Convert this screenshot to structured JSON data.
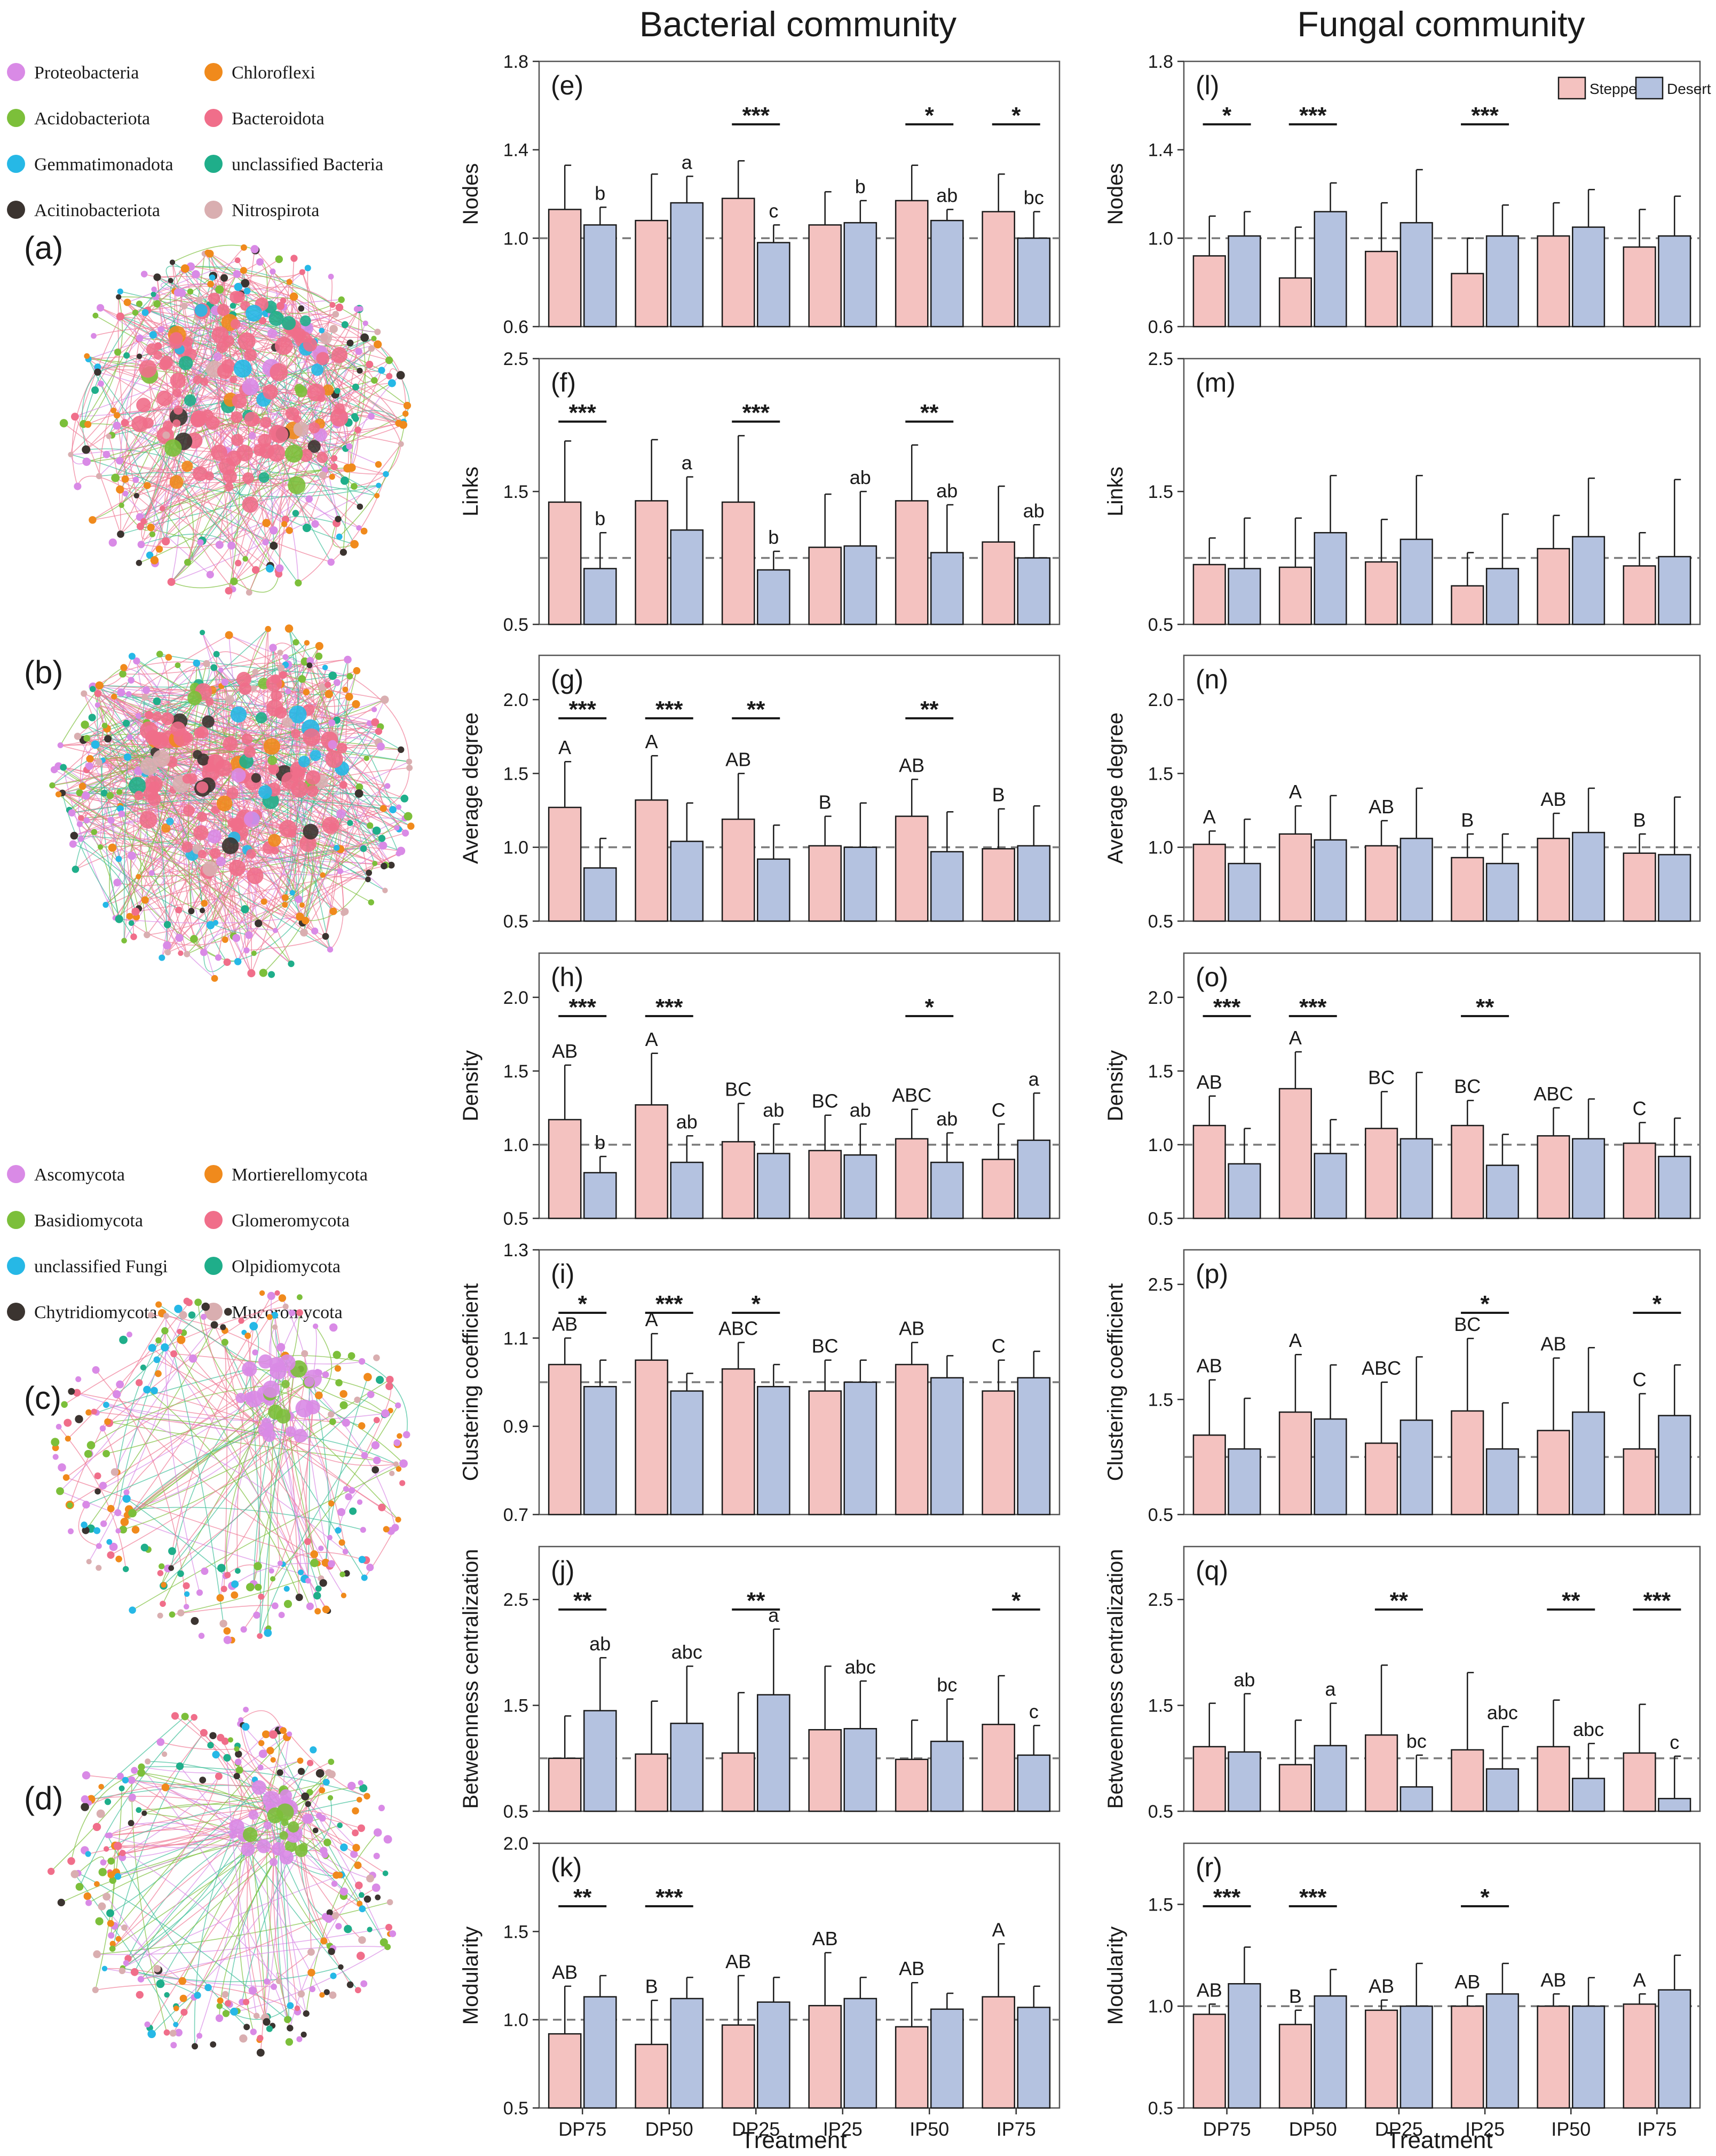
{
  "figure": {
    "titles": {
      "bacterial": "Bacterial community",
      "fungal": "Fungal community"
    },
    "treatment_label": "Treatment",
    "categories": [
      "DP75",
      "DP50",
      "DP25",
      "IP25",
      "IP50",
      "IP75"
    ],
    "legend": {
      "steppe": "Steppe",
      "desert": "Desert"
    },
    "colors": {
      "steppe": "#f4c2c0",
      "desert": "#b4c2e0",
      "edge": "#1a1a1a",
      "reference": "#7a7a7a"
    }
  },
  "network_panels": [
    {
      "label": "(a)",
      "kind": "bacteria"
    },
    {
      "label": "(b)",
      "kind": "bacteria"
    },
    {
      "label": "(c)",
      "kind": "fungi"
    },
    {
      "label": "(d)",
      "kind": "fungi"
    }
  ],
  "bacteria_legend": [
    {
      "name": "Proteobacteria",
      "color": "#d98ae6"
    },
    {
      "name": "Chloroflexi",
      "color": "#f08a1c"
    },
    {
      "name": "Acidobacteriota",
      "color": "#7cbf3a"
    },
    {
      "name": "Bacteroidota",
      "color": "#f06e8a"
    },
    {
      "name": "Gemmatimonadota",
      "color": "#26b8e6"
    },
    {
      "name": "unclassified Bacteria",
      "color": "#1fae8a"
    },
    {
      "name": "Acitinobacteriota",
      "color": "#3b3430"
    },
    {
      "name": "Nitrospirota",
      "color": "#d9aeb0"
    }
  ],
  "fungi_legend": [
    {
      "name": "Ascomycota",
      "color": "#d98ae6"
    },
    {
      "name": "Mortierellomycota",
      "color": "#f08a1c"
    },
    {
      "name": "Basidiomycota",
      "color": "#7cbf3a"
    },
    {
      "name": "Glomeromycota",
      "color": "#f06e8a"
    },
    {
      "name": "unclassified Fungi",
      "color": "#26b8e6"
    },
    {
      "name": "Olpidiomycota",
      "color": "#1fae8a"
    },
    {
      "name": "Chytridiomycota",
      "color": "#3b3430"
    },
    {
      "name": "Mucoromycota",
      "color": "#d9aeb0"
    }
  ],
  "chart_data": [
    {
      "panel": "(e)",
      "type": "bar",
      "community": "Bacterial",
      "ylabel": "Nodes",
      "ylim": [
        0.6,
        1.8
      ],
      "yticks": [
        "0.6",
        "1.0",
        "1.4",
        "1.8"
      ],
      "reference": 1.0,
      "steppe": [
        1.13,
        1.08,
        1.18,
        1.06,
        1.17,
        1.12
      ],
      "steppe_err": [
        0.2,
        0.21,
        0.17,
        0.15,
        0.16,
        0.17
      ],
      "desert": [
        1.06,
        1.16,
        0.98,
        1.07,
        1.08,
        1.0
      ],
      "desert_err": [
        0.08,
        0.12,
        0.08,
        0.1,
        0.05,
        0.12
      ],
      "sig": [
        "",
        "",
        "***",
        "",
        "*",
        "*"
      ],
      "steppe_letters": [
        "",
        "",
        "",
        "",
        "",
        ""
      ],
      "desert_letters": [
        "b",
        "a",
        "c",
        "b",
        "ab",
        "bc"
      ]
    },
    {
      "panel": "(f)",
      "type": "bar",
      "community": "Bacterial",
      "ylabel": "Links",
      "ylim": [
        0.5,
        2.5
      ],
      "yticks": [
        "0.5",
        "1.5",
        "2.5"
      ],
      "reference": 1.0,
      "steppe": [
        1.42,
        1.43,
        1.42,
        1.08,
        1.43,
        1.12
      ],
      "steppe_err": [
        0.46,
        0.46,
        0.5,
        0.4,
        0.42,
        0.42
      ],
      "desert": [
        0.92,
        1.21,
        0.91,
        1.09,
        1.04,
        1.0
      ],
      "desert_err": [
        0.27,
        0.4,
        0.14,
        0.41,
        0.36,
        0.25
      ],
      "sig": [
        "***",
        "",
        "***",
        "",
        "**",
        ""
      ],
      "steppe_letters": [
        "",
        "",
        "",
        "",
        "",
        ""
      ],
      "desert_letters": [
        "b",
        "a",
        "b",
        "ab",
        "ab",
        "ab"
      ]
    },
    {
      "panel": "(g)",
      "type": "bar",
      "community": "Bacterial",
      "ylabel": "Average degree",
      "ylim": [
        0.5,
        2.3
      ],
      "yticks": [
        "0.5",
        "1.0",
        "1.5",
        "2.0"
      ],
      "reference": 1.0,
      "steppe": [
        1.27,
        1.32,
        1.19,
        1.01,
        1.21,
        0.99
      ],
      "steppe_err": [
        0.31,
        0.3,
        0.31,
        0.2,
        0.25,
        0.27
      ],
      "desert": [
        0.86,
        1.04,
        0.92,
        1.0,
        0.97,
        1.01
      ],
      "desert_err": [
        0.2,
        0.26,
        0.23,
        0.3,
        0.27,
        0.27
      ],
      "sig": [
        "***",
        "***",
        "**",
        "",
        "**",
        ""
      ],
      "steppe_letters": [
        "A",
        "A",
        "AB",
        "B",
        "AB",
        "B"
      ],
      "desert_letters": [
        "",
        "",
        "",
        "",
        "",
        ""
      ]
    },
    {
      "panel": "(h)",
      "type": "bar",
      "community": "Bacterial",
      "ylabel": "Density",
      "ylim": [
        0.5,
        2.3
      ],
      "yticks": [
        "0.5",
        "1.0",
        "1.5",
        "2.0"
      ],
      "reference": 1.0,
      "steppe": [
        1.17,
        1.27,
        1.02,
        0.96,
        1.04,
        0.9
      ],
      "steppe_err": [
        0.37,
        0.35,
        0.26,
        0.24,
        0.2,
        0.24
      ],
      "desert": [
        0.81,
        0.88,
        0.94,
        0.93,
        0.88,
        1.03
      ],
      "desert_err": [
        0.11,
        0.18,
        0.2,
        0.21,
        0.2,
        0.32
      ],
      "sig": [
        "***",
        "***",
        "",
        "",
        "*",
        ""
      ],
      "steppe_letters": [
        "AB",
        "A",
        "BC",
        "BC",
        "ABC",
        "C"
      ],
      "desert_letters": [
        "b",
        "ab",
        "ab",
        "ab",
        "ab",
        "a"
      ]
    },
    {
      "panel": "(i)",
      "type": "bar",
      "community": "Bacterial",
      "ylabel": "Clustering coefficient",
      "ylim": [
        0.7,
        1.3
      ],
      "yticks": [
        "0.7",
        "0.9",
        "1.1",
        "1.3"
      ],
      "reference": 1.0,
      "steppe": [
        1.04,
        1.05,
        1.03,
        0.98,
        1.04,
        0.98
      ],
      "steppe_err": [
        0.06,
        0.06,
        0.06,
        0.07,
        0.05,
        0.07
      ],
      "desert": [
        0.99,
        0.98,
        0.99,
        1.0,
        1.01,
        1.01
      ],
      "desert_err": [
        0.06,
        0.04,
        0.05,
        0.05,
        0.05,
        0.06
      ],
      "sig": [
        "*",
        "***",
        "*",
        "",
        "",
        ""
      ],
      "steppe_letters": [
        "AB",
        "A",
        "ABC",
        "BC",
        "AB",
        "C"
      ],
      "desert_letters": [
        "",
        "",
        "",
        "",
        "",
        ""
      ]
    },
    {
      "panel": "(j)",
      "type": "bar",
      "community": "Bacterial",
      "ylabel": "Betweenness centralization",
      "ylim": [
        0.5,
        3.0
      ],
      "yticks": [
        "0.5",
        "1.5",
        "2.5"
      ],
      "reference": 1.0,
      "steppe": [
        1.0,
        1.04,
        1.05,
        1.27,
        0.99,
        1.32
      ],
      "steppe_err": [
        0.4,
        0.5,
        0.57,
        0.6,
        0.37,
        0.46
      ],
      "desert": [
        1.45,
        1.33,
        1.6,
        1.28,
        1.16,
        1.03
      ],
      "desert_err": [
        0.5,
        0.54,
        0.62,
        0.45,
        0.4,
        0.28
      ],
      "sig": [
        "**",
        "",
        "**",
        "",
        "",
        "*"
      ],
      "steppe_letters": [
        "",
        "",
        "",
        "",
        "",
        ""
      ],
      "desert_letters": [
        "ab",
        "abc",
        "a",
        "abc",
        "bc",
        "c"
      ]
    },
    {
      "panel": "(k)",
      "type": "bar",
      "community": "Bacterial",
      "ylabel": "Modularity",
      "ylim": [
        0.5,
        2.0
      ],
      "yticks": [
        "0.5",
        "1.0",
        "1.5",
        "2.0"
      ],
      "reference": 1.0,
      "steppe": [
        0.92,
        0.86,
        0.97,
        1.08,
        0.96,
        1.13
      ],
      "steppe_err": [
        0.27,
        0.25,
        0.28,
        0.3,
        0.25,
        0.3
      ],
      "desert": [
        1.13,
        1.12,
        1.1,
        1.12,
        1.06,
        1.07
      ],
      "desert_err": [
        0.12,
        0.12,
        0.14,
        0.12,
        0.09,
        0.12
      ],
      "sig": [
        "**",
        "***",
        "",
        "",
        "",
        ""
      ],
      "steppe_letters": [
        "AB",
        "B",
        "AB",
        "AB",
        "AB",
        "A"
      ],
      "desert_letters": [
        "",
        "",
        "",
        "",
        "",
        ""
      ]
    },
    {
      "panel": "(l)",
      "type": "bar",
      "community": "Fungal",
      "ylabel": "Nodes",
      "ylim": [
        0.6,
        1.8
      ],
      "yticks": [
        "0.6",
        "1.0",
        "1.4",
        "1.8"
      ],
      "reference": 1.0,
      "steppe": [
        0.92,
        0.82,
        0.94,
        0.84,
        1.01,
        0.96
      ],
      "steppe_err": [
        0.18,
        0.23,
        0.22,
        0.16,
        0.15,
        0.17
      ],
      "desert": [
        1.01,
        1.12,
        1.07,
        1.01,
        1.05,
        1.01
      ],
      "desert_err": [
        0.11,
        0.13,
        0.24,
        0.14,
        0.17,
        0.18
      ],
      "sig": [
        "*",
        "***",
        "",
        "***",
        "",
        ""
      ],
      "steppe_letters": [
        "",
        "",
        "",
        "",
        "",
        ""
      ],
      "desert_letters": [
        "",
        "",
        "",
        "",
        "",
        ""
      ],
      "legend": true
    },
    {
      "panel": "(m)",
      "type": "bar",
      "community": "Fungal",
      "ylabel": "Links",
      "ylim": [
        0.5,
        2.5
      ],
      "yticks": [
        "0.5",
        "1.5",
        "2.5"
      ],
      "reference": 1.0,
      "steppe": [
        0.95,
        0.93,
        0.97,
        0.79,
        1.07,
        0.94
      ],
      "steppe_err": [
        0.2,
        0.37,
        0.32,
        0.25,
        0.25,
        0.25
      ],
      "desert": [
        0.92,
        1.19,
        1.14,
        0.92,
        1.16,
        1.01
      ],
      "desert_err": [
        0.38,
        0.43,
        0.48,
        0.41,
        0.44,
        0.58
      ],
      "sig": [
        "",
        "",
        "",
        "",
        "",
        ""
      ],
      "steppe_letters": [
        "",
        "",
        "",
        "",
        "",
        ""
      ],
      "desert_letters": [
        "",
        "",
        "",
        "",
        "",
        ""
      ]
    },
    {
      "panel": "(n)",
      "type": "bar",
      "community": "Fungal",
      "ylabel": "Average degree",
      "ylim": [
        0.5,
        2.3
      ],
      "yticks": [
        "0.5",
        "1.0",
        "1.5",
        "2.0"
      ],
      "reference": 1.0,
      "steppe": [
        1.02,
        1.09,
        1.01,
        0.93,
        1.06,
        0.96
      ],
      "steppe_err": [
        0.09,
        0.19,
        0.17,
        0.16,
        0.17,
        0.13
      ],
      "desert": [
        0.89,
        1.05,
        1.06,
        0.89,
        1.1,
        0.95
      ],
      "desert_err": [
        0.3,
        0.3,
        0.34,
        0.2,
        0.3,
        0.39
      ],
      "sig": [
        "",
        "",
        "",
        "",
        "",
        ""
      ],
      "steppe_letters": [
        "A",
        "A",
        "AB",
        "B",
        "AB",
        "B"
      ],
      "desert_letters": [
        "",
        "",
        "",
        "",
        "",
        ""
      ]
    },
    {
      "panel": "(o)",
      "type": "bar",
      "community": "Fungal",
      "ylabel": "Density",
      "ylim": [
        0.5,
        2.3
      ],
      "yticks": [
        "0.5",
        "1.0",
        "1.5",
        "2.0"
      ],
      "reference": 1.0,
      "steppe": [
        1.13,
        1.38,
        1.11,
        1.13,
        1.06,
        1.01
      ],
      "steppe_err": [
        0.2,
        0.25,
        0.25,
        0.17,
        0.19,
        0.14
      ],
      "desert": [
        0.87,
        0.94,
        1.04,
        0.86,
        1.04,
        0.92
      ],
      "desert_err": [
        0.24,
        0.23,
        0.45,
        0.21,
        0.27,
        0.26
      ],
      "sig": [
        "***",
        "***",
        "",
        "**",
        "",
        ""
      ],
      "steppe_letters": [
        "AB",
        "A",
        "BC",
        "BC",
        "ABC",
        "C"
      ],
      "desert_letters": [
        "",
        "",
        "",
        "",
        "",
        ""
      ]
    },
    {
      "panel": "(p)",
      "type": "bar",
      "community": "Fungal",
      "ylabel": "Clustering coefficient",
      "ylim": [
        0.5,
        2.8
      ],
      "yticks": [
        "0.5",
        "1.5",
        "2.5"
      ],
      "reference": 1.0,
      "steppe": [
        1.19,
        1.39,
        1.12,
        1.4,
        1.23,
        1.07
      ],
      "steppe_err": [
        0.48,
        0.5,
        0.53,
        0.63,
        0.63,
        0.48
      ],
      "desert": [
        1.07,
        1.33,
        1.32,
        1.07,
        1.39,
        1.36
      ],
      "desert_err": [
        0.44,
        0.47,
        0.55,
        0.4,
        0.56,
        0.44
      ],
      "sig": [
        "",
        "",
        "",
        "*",
        "",
        "*"
      ],
      "steppe_letters": [
        "AB",
        "A",
        "ABC",
        "BC",
        "AB",
        "C"
      ],
      "desert_letters": [
        "",
        "",
        "",
        "",
        "",
        ""
      ]
    },
    {
      "panel": "(q)",
      "type": "bar",
      "community": "Fungal",
      "ylabel": "Betweenness centralization",
      "ylim": [
        0.5,
        3.0
      ],
      "yticks": [
        "0.5",
        "1.5",
        "2.5"
      ],
      "reference": 1.0,
      "steppe": [
        1.11,
        0.94,
        1.22,
        1.08,
        1.11,
        1.05
      ],
      "steppe_err": [
        0.41,
        0.42,
        0.66,
        0.73,
        0.44,
        0.46
      ],
      "desert": [
        1.06,
        1.12,
        0.73,
        0.9,
        0.81,
        0.62
      ],
      "desert_err": [
        0.55,
        0.4,
        0.3,
        0.4,
        0.33,
        0.4
      ],
      "sig": [
        "",
        "",
        "**",
        "",
        "**",
        "***"
      ],
      "steppe_letters": [
        "",
        "",
        "",
        "",
        "",
        ""
      ],
      "desert_letters": [
        "ab",
        "a",
        "bc",
        "abc",
        "abc",
        "c"
      ]
    },
    {
      "panel": "(r)",
      "type": "bar",
      "community": "Fungal",
      "ylabel": "Modularity",
      "ylim": [
        0.5,
        1.8
      ],
      "yticks": [
        "0.5",
        "1.0",
        "1.5"
      ],
      "reference": 1.0,
      "steppe": [
        0.96,
        0.91,
        0.98,
        1.0,
        1.0,
        1.01
      ],
      "steppe_err": [
        0.05,
        0.07,
        0.05,
        0.05,
        0.06,
        0.05
      ],
      "desert": [
        1.11,
        1.05,
        1.0,
        1.06,
        1.0,
        1.08
      ],
      "desert_err": [
        0.18,
        0.13,
        0.21,
        0.15,
        0.14,
        0.17
      ],
      "sig": [
        "***",
        "***",
        "",
        "*",
        "",
        ""
      ],
      "steppe_letters": [
        "AB",
        "B",
        "AB",
        "AB",
        "AB",
        "A"
      ],
      "desert_letters": [
        "",
        "",
        "",
        "",
        "",
        ""
      ]
    }
  ]
}
